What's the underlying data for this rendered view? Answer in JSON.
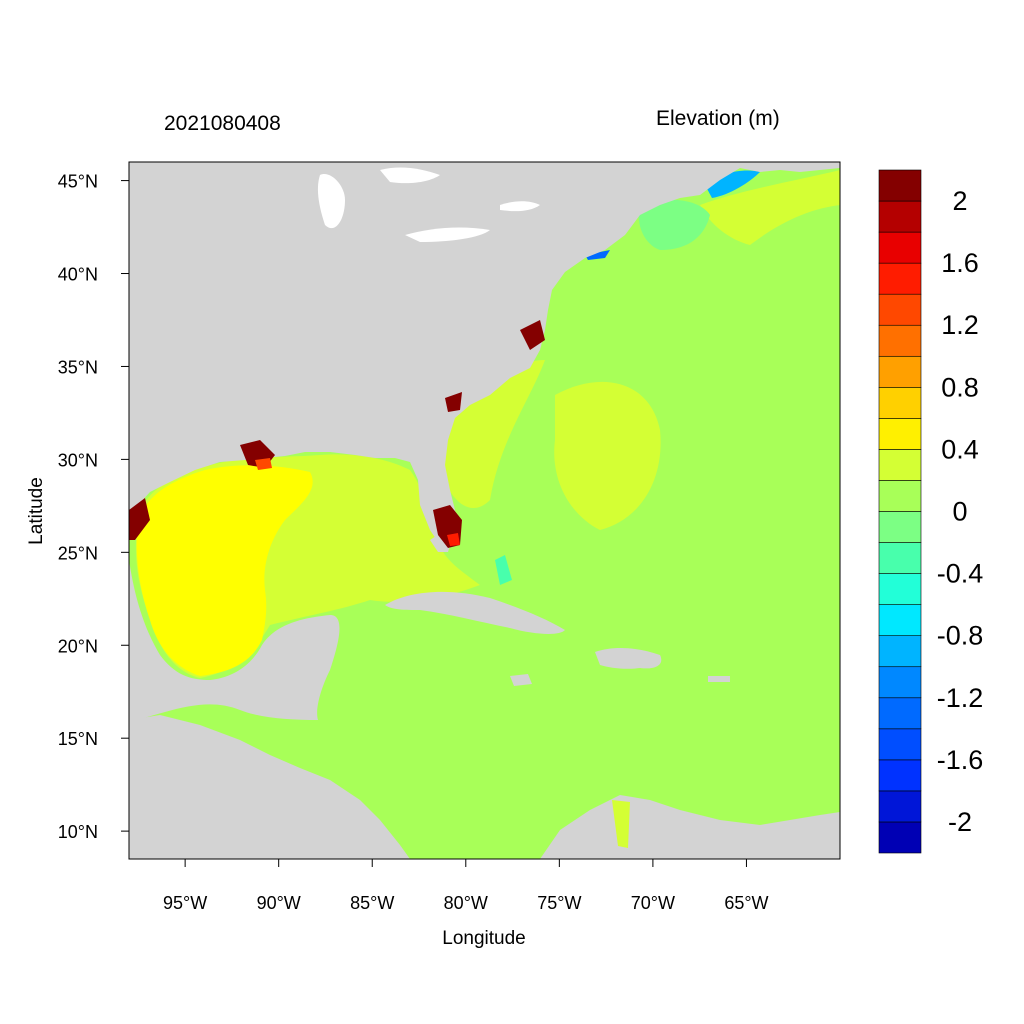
{
  "titles": {
    "left": "2021080408",
    "right": "Elevation (m)"
  },
  "axes": {
    "xlabel": "Longitude",
    "ylabel": "Latitude",
    "lon_range": [
      -98,
      -60
    ],
    "lat_range": [
      8.5,
      46
    ],
    "xticks": [
      {
        "value": -95,
        "label": "95°W"
      },
      {
        "value": -90,
        "label": "90°W"
      },
      {
        "value": -85,
        "label": "85°W"
      },
      {
        "value": -80,
        "label": "80°W"
      },
      {
        "value": -75,
        "label": "75°W"
      },
      {
        "value": -70,
        "label": "70°W"
      },
      {
        "value": -65,
        "label": "65°W"
      }
    ],
    "yticks": [
      {
        "value": 45,
        "label": "45°N"
      },
      {
        "value": 40,
        "label": "40°N"
      },
      {
        "value": 35,
        "label": "35°N"
      },
      {
        "value": 30,
        "label": "30°N"
      },
      {
        "value": 25,
        "label": "25°N"
      },
      {
        "value": 20,
        "label": "20°N"
      },
      {
        "value": 15,
        "label": "15°N"
      },
      {
        "value": 10,
        "label": "10°N"
      }
    ]
  },
  "colorbar": {
    "colors": [
      "#0000b4",
      "#0016d8",
      "#0032ff",
      "#004eff",
      "#006aff",
      "#0088ff",
      "#00b4ff",
      "#00e8ff",
      "#22ffd8",
      "#48ffac",
      "#7cff84",
      "#a8ff58",
      "#d4ff34",
      "#fff000",
      "#ffd000",
      "#ffa000",
      "#ff7000",
      "#ff4800",
      "#ff1c00",
      "#e80000",
      "#b40000",
      "#840000"
    ],
    "labels": [
      {
        "value": -2,
        "label": "-2"
      },
      {
        "value": -1.6,
        "label": "-1.6"
      },
      {
        "value": -1.2,
        "label": "-1.2"
      },
      {
        "value": -0.8,
        "label": "-0.8"
      },
      {
        "value": -0.4,
        "label": "-0.4"
      },
      {
        "value": 0,
        "label": "0"
      },
      {
        "value": 0.4,
        "label": "0.4"
      },
      {
        "value": 0.8,
        "label": "0.8"
      },
      {
        "value": 1.2,
        "label": "1.2"
      },
      {
        "value": 1.6,
        "label": "1.6"
      },
      {
        "value": 2,
        "label": "2"
      }
    ]
  },
  "colors": {
    "land": "#d3d3d3",
    "ocean_base": "#a8ff58",
    "gulf": "#ffff00",
    "shelf": "#d4ff34",
    "surge_high": "#840000"
  }
}
